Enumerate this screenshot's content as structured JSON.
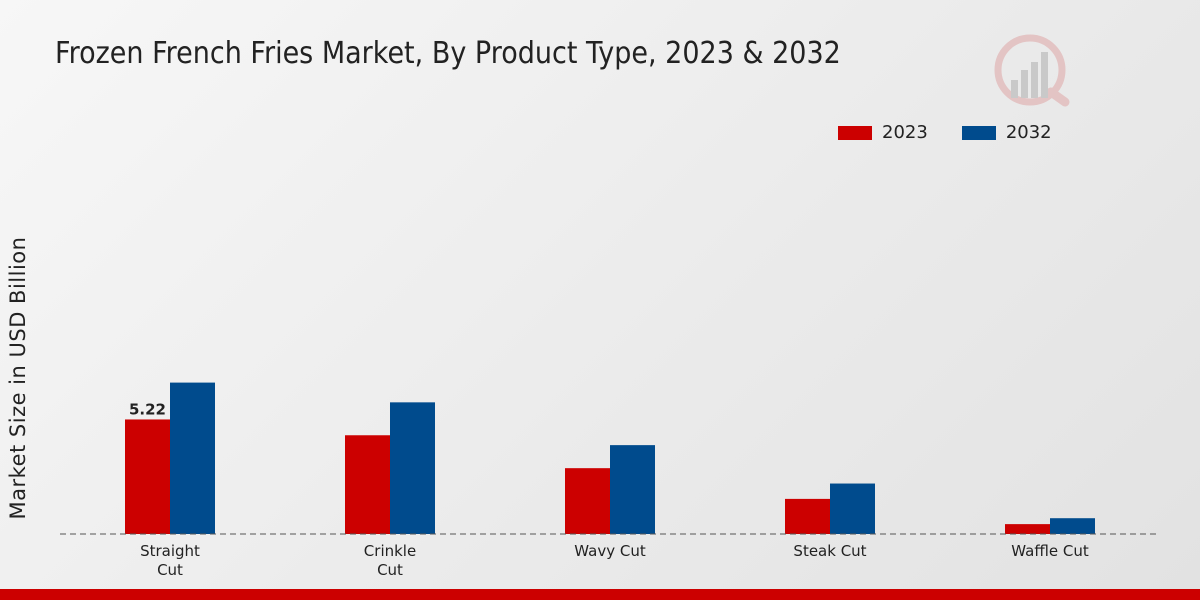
{
  "header": {
    "title": "Frozen French Fries Market, By Product Type, 2023 & 2032"
  },
  "chart_data": {
    "type": "bar",
    "title": "Frozen French Fries Market, By Product Type, 2023 & 2032",
    "xlabel": "",
    "ylabel": "Market Size in USD Billion",
    "categories": [
      [
        "Straight",
        "Cut"
      ],
      [
        "Crinkle",
        "Cut"
      ],
      [
        "Wavy Cut"
      ],
      [
        "Steak Cut"
      ],
      [
        "Waffle Cut"
      ]
    ],
    "series": [
      {
        "name": "2023",
        "color": "#cc0000",
        "values": [
          5.22,
          4.5,
          3.0,
          1.6,
          0.45
        ]
      },
      {
        "name": "2032",
        "color": "#004b8d",
        "values": [
          6.9,
          6.0,
          4.05,
          2.3,
          0.72
        ]
      }
    ],
    "data_labels": [
      {
        "series": 0,
        "index": 0,
        "text": "5.22"
      }
    ],
    "ylim": [
      0,
      17.5
    ],
    "grid": false,
    "legend_position": "top-right"
  }
}
